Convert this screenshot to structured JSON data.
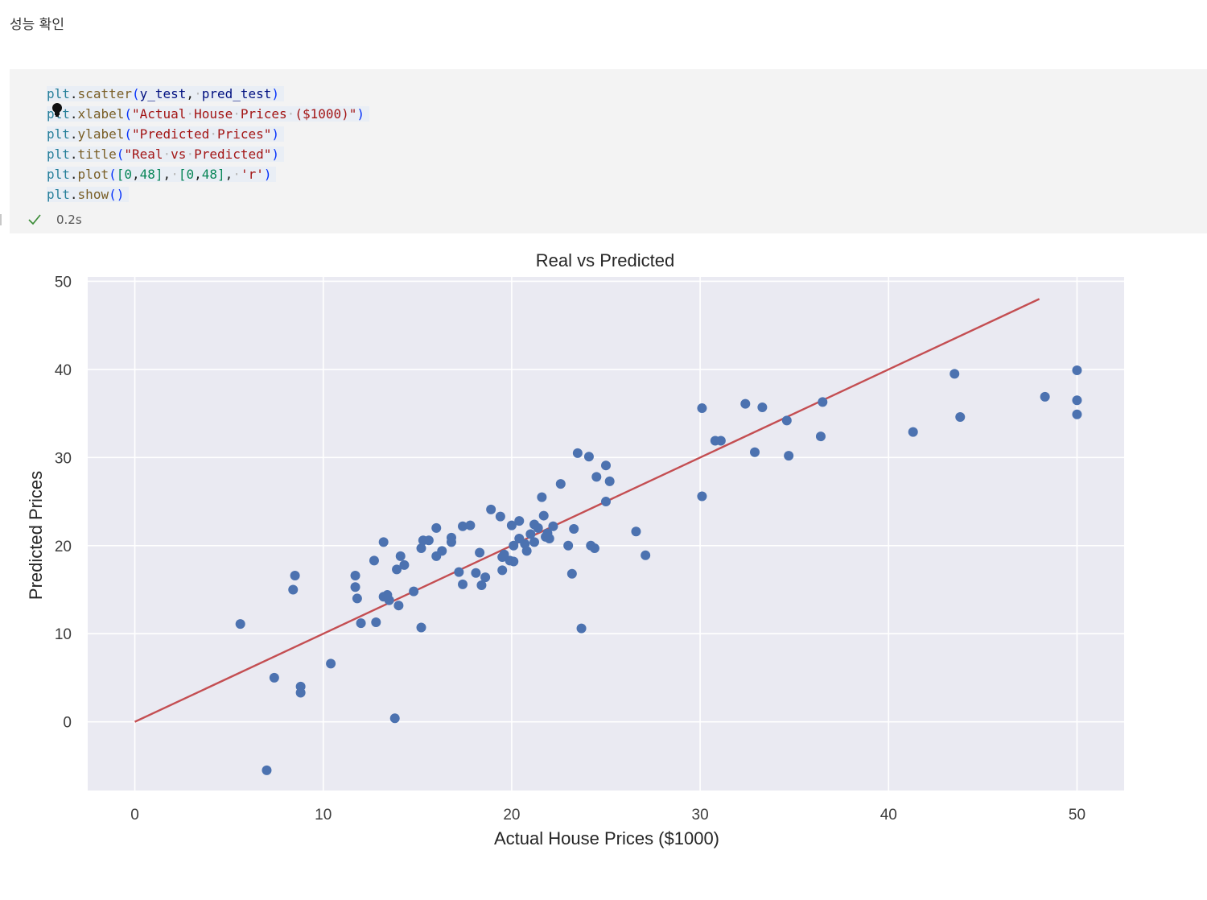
{
  "markdown_cell": {
    "text": "성능 확인"
  },
  "code_cell": {
    "lines": [
      [
        {
          "t": "plt",
          "c": "var"
        },
        {
          "t": ".",
          "c": "dot"
        },
        {
          "t": "scatter",
          "c": "fn"
        },
        {
          "t": "(",
          "c": "par"
        },
        {
          "t": "y_test",
          "c": "id"
        },
        {
          "t": ",",
          "c": "pun"
        },
        {
          "t": "·",
          "c": "ws"
        },
        {
          "t": "pred_test",
          "c": "id"
        },
        {
          "t": ")",
          "c": "par"
        }
      ],
      [
        {
          "t": "plt",
          "c": "var"
        },
        {
          "t": ".",
          "c": "dot"
        },
        {
          "t": "xlabel",
          "c": "fn"
        },
        {
          "t": "(",
          "c": "par"
        },
        {
          "t": "\"Actual",
          "c": "str"
        },
        {
          "t": "·",
          "c": "ws"
        },
        {
          "t": "House",
          "c": "str"
        },
        {
          "t": "·",
          "c": "ws"
        },
        {
          "t": "Prices",
          "c": "str"
        },
        {
          "t": "·",
          "c": "ws"
        },
        {
          "t": "($1000)\"",
          "c": "str"
        },
        {
          "t": ")",
          "c": "par"
        }
      ],
      [
        {
          "t": "plt",
          "c": "var"
        },
        {
          "t": ".",
          "c": "dot"
        },
        {
          "t": "ylabel",
          "c": "fn"
        },
        {
          "t": "(",
          "c": "par"
        },
        {
          "t": "\"Predicted",
          "c": "str"
        },
        {
          "t": "·",
          "c": "ws"
        },
        {
          "t": "Prices\"",
          "c": "str"
        },
        {
          "t": ")",
          "c": "par"
        }
      ],
      [
        {
          "t": "plt",
          "c": "var"
        },
        {
          "t": ".",
          "c": "dot"
        },
        {
          "t": "title",
          "c": "fn"
        },
        {
          "t": "(",
          "c": "par"
        },
        {
          "t": "\"Real",
          "c": "str"
        },
        {
          "t": "·",
          "c": "ws"
        },
        {
          "t": "vs",
          "c": "str"
        },
        {
          "t": "·",
          "c": "ws"
        },
        {
          "t": "Predicted\"",
          "c": "str"
        },
        {
          "t": ")",
          "c": "par"
        }
      ],
      [
        {
          "t": "plt",
          "c": "var"
        },
        {
          "t": ".",
          "c": "dot"
        },
        {
          "t": "plot",
          "c": "fn"
        },
        {
          "t": "(",
          "c": "par"
        },
        {
          "t": "[",
          "c": "num"
        },
        {
          "t": "0",
          "c": "num"
        },
        {
          "t": ",",
          "c": "pun"
        },
        {
          "t": "48",
          "c": "num"
        },
        {
          "t": "]",
          "c": "num"
        },
        {
          "t": ",",
          "c": "pun"
        },
        {
          "t": "·",
          "c": "ws"
        },
        {
          "t": "[",
          "c": "num"
        },
        {
          "t": "0",
          "c": "num"
        },
        {
          "t": ",",
          "c": "pun"
        },
        {
          "t": "48",
          "c": "num"
        },
        {
          "t": "]",
          "c": "num"
        },
        {
          "t": ",",
          "c": "pun"
        },
        {
          "t": "·",
          "c": "ws"
        },
        {
          "t": "'r'",
          "c": "str"
        },
        {
          "t": ")",
          "c": "par"
        }
      ],
      [
        {
          "t": "plt",
          "c": "var"
        },
        {
          "t": ".",
          "c": "dot"
        },
        {
          "t": "show",
          "c": "fn"
        },
        {
          "t": "()",
          "c": "par"
        }
      ]
    ],
    "status": {
      "icon": "check-icon",
      "time": "0.2s",
      "color": "#388a34"
    }
  },
  "colors": {
    "plot_bg": "#eaeaf2",
    "grid": "#ffffff",
    "point": "#4c72b0",
    "line": "#c44e52"
  },
  "chart_data": {
    "type": "scatter",
    "title": "Real vs Predicted",
    "xlabel": "Actual House Prices ($1000)",
    "ylabel": "Predicted Prices",
    "xlim": [
      -2.5,
      52.5
    ],
    "ylim": [
      -7.8,
      50.5
    ],
    "xticks": [
      0,
      10,
      20,
      30,
      40,
      50
    ],
    "yticks": [
      0,
      10,
      20,
      30,
      40,
      50
    ],
    "grid": true,
    "points": [
      [
        5.6,
        11.1
      ],
      [
        7.0,
        -5.5
      ],
      [
        7.4,
        5.0
      ],
      [
        8.4,
        15.0
      ],
      [
        8.5,
        16.6
      ],
      [
        8.8,
        4.0
      ],
      [
        8.8,
        3.3
      ],
      [
        10.4,
        6.6
      ],
      [
        11.7,
        16.6
      ],
      [
        11.7,
        15.3
      ],
      [
        11.8,
        14.0
      ],
      [
        12.0,
        11.2
      ],
      [
        12.7,
        18.3
      ],
      [
        12.8,
        11.3
      ],
      [
        13.2,
        20.4
      ],
      [
        13.2,
        14.2
      ],
      [
        13.4,
        14.4
      ],
      [
        13.5,
        13.8
      ],
      [
        13.8,
        0.4
      ],
      [
        13.9,
        17.3
      ],
      [
        14.0,
        13.2
      ],
      [
        14.1,
        18.8
      ],
      [
        14.3,
        17.8
      ],
      [
        14.8,
        14.8
      ],
      [
        15.2,
        10.7
      ],
      [
        15.2,
        19.7
      ],
      [
        15.3,
        20.6
      ],
      [
        15.6,
        20.6
      ],
      [
        16.0,
        22.0
      ],
      [
        16.0,
        18.8
      ],
      [
        16.3,
        19.4
      ],
      [
        16.8,
        20.9
      ],
      [
        16.8,
        20.4
      ],
      [
        17.2,
        17.0
      ],
      [
        17.4,
        22.2
      ],
      [
        17.4,
        15.6
      ],
      [
        17.8,
        22.3
      ],
      [
        18.1,
        16.9
      ],
      [
        18.3,
        19.2
      ],
      [
        18.4,
        15.5
      ],
      [
        18.6,
        16.4
      ],
      [
        18.9,
        24.1
      ],
      [
        19.4,
        23.3
      ],
      [
        19.5,
        18.7
      ],
      [
        19.5,
        17.2
      ],
      [
        19.6,
        19.0
      ],
      [
        19.9,
        18.3
      ],
      [
        20.0,
        22.3
      ],
      [
        20.1,
        20.0
      ],
      [
        20.1,
        18.2
      ],
      [
        20.4,
        22.8
      ],
      [
        20.4,
        20.8
      ],
      [
        20.7,
        20.2
      ],
      [
        20.8,
        19.4
      ],
      [
        21.0,
        21.3
      ],
      [
        21.2,
        22.4
      ],
      [
        21.2,
        20.4
      ],
      [
        21.4,
        22.0
      ],
      [
        21.6,
        25.5
      ],
      [
        21.7,
        23.4
      ],
      [
        21.8,
        21.0
      ],
      [
        21.9,
        21.4
      ],
      [
        22.0,
        20.8
      ],
      [
        22.2,
        22.2
      ],
      [
        22.6,
        27.0
      ],
      [
        23.0,
        20.0
      ],
      [
        23.2,
        16.8
      ],
      [
        23.3,
        21.9
      ],
      [
        23.5,
        30.5
      ],
      [
        23.7,
        10.6
      ],
      [
        24.1,
        30.1
      ],
      [
        24.2,
        20.0
      ],
      [
        24.4,
        19.7
      ],
      [
        24.5,
        27.8
      ],
      [
        25.0,
        29.1
      ],
      [
        25.0,
        25.0
      ],
      [
        25.2,
        27.3
      ],
      [
        26.6,
        21.6
      ],
      [
        27.1,
        18.9
      ],
      [
        30.1,
        35.6
      ],
      [
        30.1,
        25.6
      ],
      [
        30.8,
        31.9
      ],
      [
        31.1,
        31.9
      ],
      [
        32.4,
        36.1
      ],
      [
        32.9,
        30.6
      ],
      [
        33.3,
        35.7
      ],
      [
        34.6,
        34.2
      ],
      [
        34.7,
        30.2
      ],
      [
        36.4,
        32.4
      ],
      [
        36.5,
        36.3
      ],
      [
        41.3,
        32.9
      ],
      [
        43.5,
        39.5
      ],
      [
        43.8,
        34.6
      ],
      [
        48.3,
        36.9
      ],
      [
        50.0,
        39.9
      ],
      [
        50.0,
        36.5
      ],
      [
        50.0,
        34.9
      ]
    ],
    "line": {
      "x": [
        0,
        48
      ],
      "y": [
        0,
        48
      ],
      "color": "r"
    }
  }
}
